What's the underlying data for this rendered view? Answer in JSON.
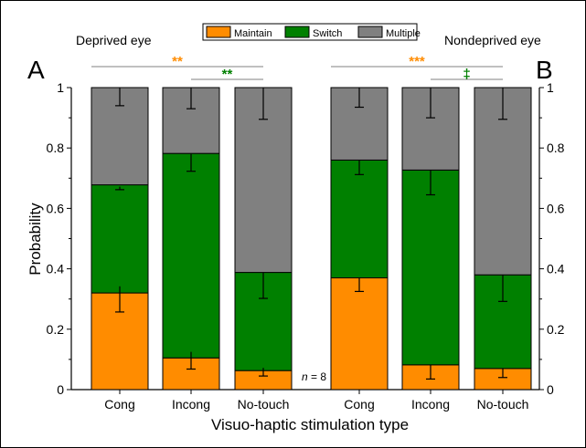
{
  "chart_data": {
    "type": "bar",
    "stacked": true,
    "xlabel": "Visuo-haptic stimulation type",
    "ylabel": "Probability",
    "ylim": [
      0,
      1
    ],
    "yticks": [
      "0",
      "0.2",
      "0.4",
      "0.6",
      "0.8",
      "1"
    ],
    "ytick_values": [
      0,
      0.2,
      0.4,
      0.6,
      0.8,
      1
    ],
    "legend": {
      "placement": "top-center",
      "entries": [
        {
          "name": "Maintain",
          "color": "#ff8c00"
        },
        {
          "name": "Switch",
          "color": "#008000"
        },
        {
          "name": "Multiple",
          "color": "#808080"
        }
      ]
    },
    "sample_note": {
      "prefix": "n",
      "text": " = 8"
    },
    "panels": [
      {
        "letter": "A",
        "title": "Deprived eye",
        "categories": [
          "Cong",
          "Incong",
          "No-touch"
        ],
        "series": [
          {
            "name": "Maintain",
            "values": [
              0.32,
              0.105,
              0.063
            ],
            "err_low": [
              0.257,
              0.068,
              0.045
            ],
            "err_high": [
              0.342,
              0.125,
              0.072
            ]
          },
          {
            "name": "Switch",
            "values": [
              0.358,
              0.677,
              0.325
            ],
            "err_low": [
              0.662,
              0.723,
              0.302
            ],
            "err_high": [
              0.672,
              0.78,
              0.388
            ]
          },
          {
            "name": "Multiple",
            "values": [
              0.322,
              0.218,
              0.612
            ],
            "err_low": [
              0.94,
              0.93,
              0.895
            ],
            "err_high": [
              1.0,
              1.0,
              1.0
            ]
          }
        ],
        "significance": [
          {
            "label": "**",
            "color": "#ff8c00",
            "from": 0,
            "to": 2
          },
          {
            "label": "**",
            "color": "#008000",
            "from": 1,
            "to": 2
          }
        ]
      },
      {
        "letter": "B",
        "title": "Nondeprived eye",
        "categories": [
          "Cong",
          "Incong",
          "No-touch"
        ],
        "series": [
          {
            "name": "Maintain",
            "values": [
              0.37,
              0.082,
              0.07
            ],
            "err_low": [
              0.325,
              0.035,
              0.04
            ],
            "err_high": [
              0.37,
              0.082,
              0.07
            ]
          },
          {
            "name": "Switch",
            "values": [
              0.39,
              0.645,
              0.31
            ],
            "err_low": [
              0.712,
              0.645,
              0.292
            ],
            "err_high": [
              0.76,
              0.727,
              0.38
            ]
          },
          {
            "name": "Multiple",
            "values": [
              0.24,
              0.273,
              0.62
            ],
            "err_low": [
              0.935,
              0.9,
              0.895
            ],
            "err_high": [
              1.0,
              1.0,
              1.0
            ]
          }
        ],
        "significance": [
          {
            "label": "***",
            "color": "#ff8c00",
            "from": 0,
            "to": 2
          },
          {
            "label": "‡",
            "color": "#008000",
            "from": 1,
            "to": 2
          }
        ]
      }
    ]
  }
}
